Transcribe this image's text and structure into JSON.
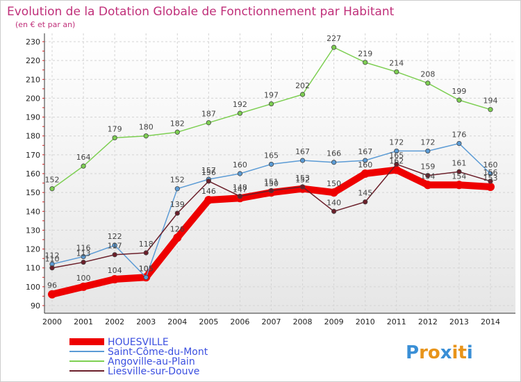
{
  "chart_data": {
    "type": "line",
    "title": "Evolution de la Dotation Globale de Fonctionnement par Habitant",
    "subtitle": "(en € et par an)",
    "x": [
      "2000",
      "2001",
      "2002",
      "2003",
      "2004",
      "2005",
      "2006",
      "2007",
      "2008",
      "2009",
      "2010",
      "2011",
      "2012",
      "2013",
      "2014"
    ],
    "ylim": [
      90,
      230
    ],
    "yticks": [
      90,
      100,
      110,
      120,
      130,
      140,
      150,
      160,
      170,
      180,
      190,
      200,
      210,
      220,
      230
    ],
    "grid": true,
    "legend_position": "bottom-left",
    "series": [
      {
        "name": "HOUESVILLE",
        "color": "#ee0000",
        "values": [
          96,
          100,
          104,
          105,
          126,
          146,
          147,
          150,
          152,
          150,
          160,
          162,
          154,
          154,
          153
        ],
        "labels": [
          "96",
          "100",
          "104",
          "105",
          "126",
          "146",
          "147",
          "150",
          "152",
          "150",
          "160",
          "162",
          "154",
          "154",
          "153"
        ]
      },
      {
        "name": "Saint-Côme-du-Mont",
        "color": "#5b9bd5",
        "values": [
          112,
          116,
          122,
          105,
          152,
          157,
          160,
          165,
          167,
          166,
          167,
          172,
          172,
          176,
          160
        ],
        "labels": [
          "112",
          "116",
          "122",
          "105",
          "152",
          "157",
          "160",
          "165",
          "167",
          "166",
          "167",
          "172",
          "172",
          "176",
          "160"
        ]
      },
      {
        "name": "Angoville-au-Plain",
        "color": "#7dcf52",
        "values": [
          152,
          164,
          179,
          180,
          182,
          187,
          192,
          197,
          202,
          227,
          219,
          214,
          208,
          199,
          194
        ],
        "labels": [
          "152",
          "164",
          "179",
          "180",
          "182",
          "187",
          "192",
          "197",
          "202",
          "227",
          "219",
          "214",
          "208",
          "199",
          "194"
        ]
      },
      {
        "name": "Liesville-sur-Douve",
        "color": "#6b1f2a",
        "values": [
          110,
          113,
          117,
          118,
          139,
          156,
          148,
          151,
          153,
          140,
          145,
          165,
          159,
          161,
          156
        ],
        "labels": [
          "110",
          "113",
          "117",
          "118",
          "139",
          "156",
          "148",
          "151",
          "153",
          "140",
          "145",
          "165",
          "159",
          "161",
          "156"
        ]
      }
    ]
  },
  "logo": {
    "letters": [
      "P",
      "r",
      "o",
      "x",
      "i",
      "t",
      "i"
    ],
    "colors": [
      "#3a8fd6",
      "#e8941a",
      "#e8941a",
      "#3a8fd6",
      "#e8941a",
      "#e8941a",
      "#3a8fd6"
    ]
  }
}
